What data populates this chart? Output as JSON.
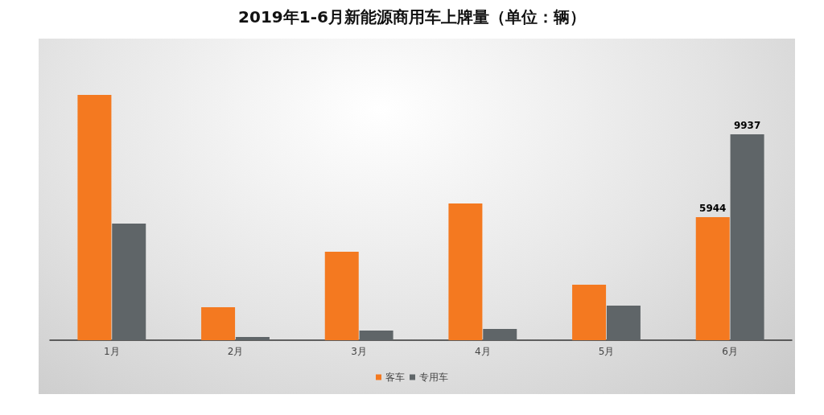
{
  "chart_data": {
    "type": "bar",
    "title": "2019年1-6月新能源商用车上牌量（单位：辆）",
    "categories": [
      "1月",
      "2月",
      "3月",
      "4月",
      "5月",
      "6月"
    ],
    "series": [
      {
        "name": "客车",
        "color": "#f47920",
        "values": [
          11840,
          1590,
          4270,
          6600,
          2680,
          5944
        ],
        "value_labels": [
          null,
          null,
          null,
          null,
          null,
          "5944"
        ]
      },
      {
        "name": "专用车",
        "color": "#5f6568",
        "values": [
          5630,
          155,
          465,
          545,
          1670,
          9937
        ],
        "value_labels": [
          null,
          null,
          null,
          null,
          null,
          "9937"
        ]
      }
    ],
    "legend": "bottom"
  }
}
